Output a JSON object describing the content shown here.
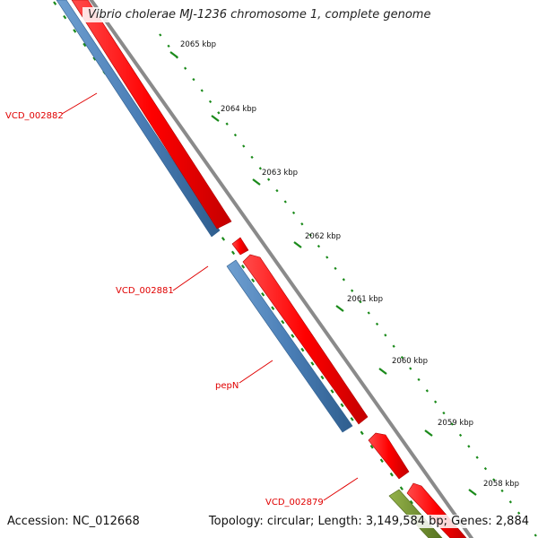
{
  "map": {
    "title": "Vibrio cholerae MJ-1236 chromosome 1, complete genome",
    "accession": "Accession: NC_012668",
    "summary": "Topology: circular; Length: 3,149,584 bp; Genes: 2,884"
  },
  "ticks": [
    {
      "label": "2065 kbp"
    },
    {
      "label": "2064 kbp"
    },
    {
      "label": "2063 kbp"
    },
    {
      "label": "2062 kbp"
    },
    {
      "label": "2061 kbp"
    },
    {
      "label": "2060 kbp"
    },
    {
      "label": "2059 kbp"
    },
    {
      "label": "2058 kbp"
    }
  ],
  "gene_labels": [
    {
      "name": "VCD_002882"
    },
    {
      "name": "VCD_002881"
    },
    {
      "name": "pepN"
    },
    {
      "name": "VCD_002879"
    }
  ],
  "colors": {
    "forward": "#ff0000",
    "reverse": "#4a7eb6",
    "other": "#6e8e2a",
    "backbone": "#8a8a8a",
    "ticks": "#1a8a1a",
    "label": "#e00000"
  }
}
